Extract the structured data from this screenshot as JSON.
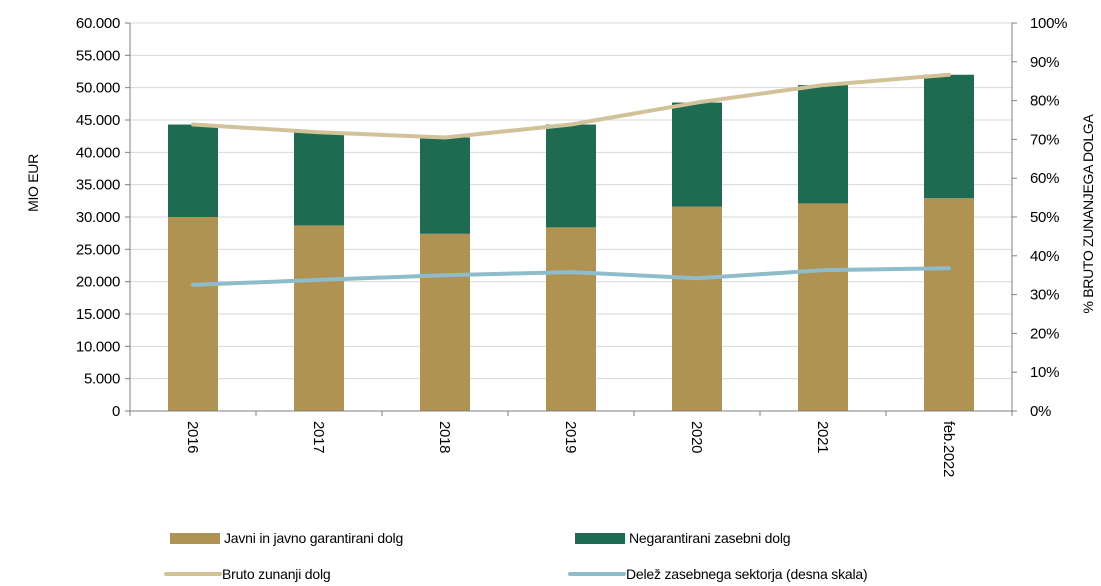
{
  "chart_data": {
    "type": "bar",
    "stacked": true,
    "categories": [
      "2016",
      "2017",
      "2018",
      "2019",
      "2020",
      "2021",
      "feb.2022"
    ],
    "series": [
      {
        "name": "Javni in javno garantirani dolg",
        "kind": "bar",
        "axis": "left",
        "color": "#b09352",
        "values": [
          30000,
          28700,
          27400,
          28400,
          31600,
          32100,
          32900
        ]
      },
      {
        "name": "Negarantirani zasebni dolg",
        "kind": "bar",
        "axis": "left",
        "color": "#1e6b52",
        "values": [
          14300,
          14400,
          14900,
          15900,
          16100,
          18300,
          19100
        ]
      },
      {
        "name": "Bruto zunanji dolg",
        "kind": "line",
        "axis": "left",
        "color": "#d2c29a",
        "values": [
          44300,
          43100,
          42300,
          44300,
          47700,
          50400,
          52000
        ]
      },
      {
        "name": "Delež zasebnega sektorja (desna skala)",
        "kind": "line",
        "axis": "right",
        "color": "#8fbccb",
        "values": [
          0.325,
          0.338,
          0.35,
          0.358,
          0.342,
          0.363,
          0.368
        ]
      }
    ],
    "ylabel": "MIO EUR",
    "ylabel_right": "% BRUTO ZUNANJEGA DOLGA",
    "ylim": [
      0,
      60000
    ],
    "ylim_right": [
      0,
      1
    ],
    "yticks": [
      "0",
      "5.000",
      "10.000",
      "15.000",
      "20.000",
      "25.000",
      "30.000",
      "35.000",
      "40.000",
      "45.000",
      "50.000",
      "55.000",
      "60.000"
    ],
    "yticks_right": [
      "0%",
      "10%",
      "20%",
      "30%",
      "40%",
      "50%",
      "60%",
      "70%",
      "80%",
      "90%",
      "100%"
    ],
    "grid": true,
    "legend_position": "bottom"
  }
}
